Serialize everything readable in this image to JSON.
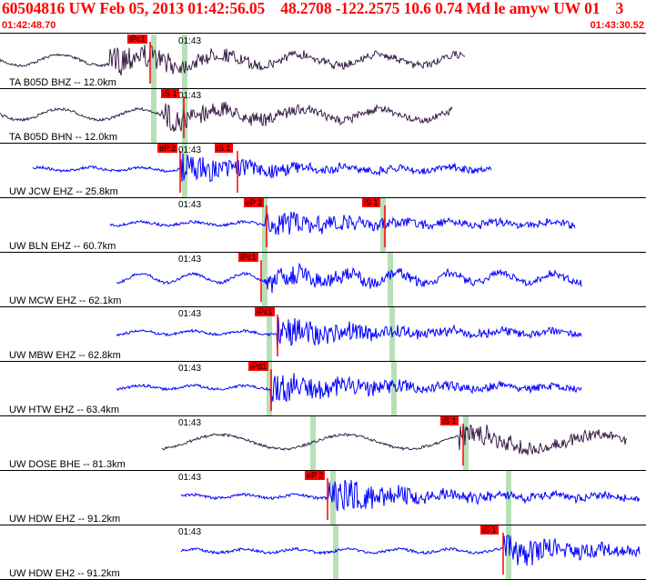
{
  "header": {
    "title": "60504816 UW Feb 05, 2013 01:42:56.05    48.2708 -122.2575 10.6 0.74 Md le amyw UW 01    3",
    "start_time": "01:42:48.70",
    "end_time": "01:43:30.52"
  },
  "colors": {
    "header_text": "#ff0000",
    "pick_box": "#ff0000",
    "pick_window": "#b8e0b8",
    "trace_blue": "#0000ff",
    "trace_dark": "#2a0d3a"
  },
  "minute_mark": "01:43",
  "traces": [
    {
      "label": "TA B05D BHZ -- 12.0km",
      "color": "dark",
      "picks": [
        "iPc1"
      ],
      "amplitude": 0.55,
      "onset": 0.17,
      "start": 0.0,
      "end": 0.72
    },
    {
      "label": "TA B05D BHN -- 12.0km",
      "color": "dark",
      "picks": [
        "iS 1"
      ],
      "amplitude": 0.45,
      "onset": 0.25,
      "start": 0.0,
      "end": 0.7
    },
    {
      "label": "UW JCW EHZ -- 25.8km",
      "color": "blue",
      "picks": [
        "eP 2",
        "iS 1"
      ],
      "amplitude": 0.5,
      "onset": 0.28,
      "start": 0.05,
      "end": 0.76
    },
    {
      "label": "UW BLN EHZ -- 60.7km",
      "color": "blue",
      "picks": [
        "eP 2",
        "iS 1"
      ],
      "amplitude": 0.45,
      "onset": 0.41,
      "start": 0.17,
      "end": 0.89
    },
    {
      "label": "UW MCW EHZ -- 62.1km",
      "color": "blue",
      "picks": [
        "iPc1"
      ],
      "amplitude": 0.45,
      "onset": 0.41,
      "start": 0.18,
      "end": 0.9
    },
    {
      "label": "UW MBW EHZ -- 62.8km",
      "color": "blue",
      "picks": [
        "iPc1"
      ],
      "amplitude": 0.55,
      "onset": 0.43,
      "start": 0.18,
      "end": 0.9
    },
    {
      "label": "UW HTW EHZ -- 63.4km",
      "color": "blue",
      "picks": [
        "iPd1"
      ],
      "amplitude": 0.6,
      "onset": 0.42,
      "start": 0.18,
      "end": 0.9
    },
    {
      "label": "UW DOSE BHE -- 81.3km",
      "color": "dark",
      "picks": [
        "iS 1"
      ],
      "amplitude": 0.45,
      "onset": 0.71,
      "start": 0.25,
      "end": 0.97
    },
    {
      "label": "UW HDW EHZ -- 91.2km",
      "color": "blue",
      "picks": [
        "eP 2"
      ],
      "amplitude": 0.6,
      "onset": 0.51,
      "start": 0.28,
      "end": 0.99
    },
    {
      "label": "UW HDW EH2 -- 91.2km",
      "color": "blue",
      "picks": [
        "iS 1"
      ],
      "amplitude": 0.55,
      "onset": 0.78,
      "start": 0.28,
      "end": 0.99
    }
  ]
}
